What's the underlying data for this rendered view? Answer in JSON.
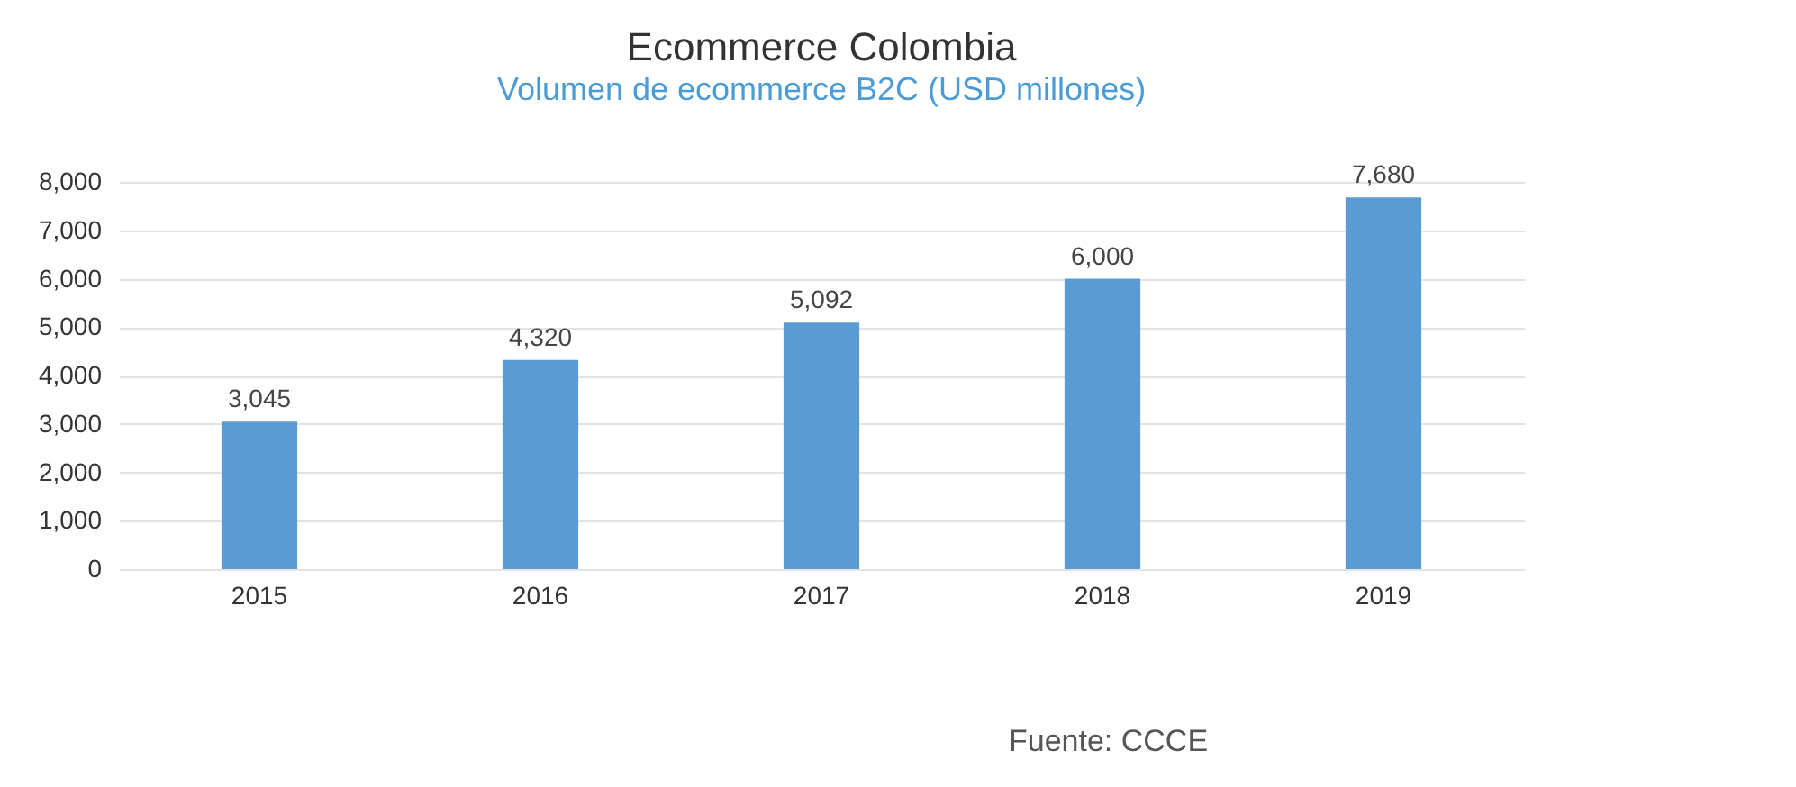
{
  "chart_data": {
    "type": "bar",
    "title": "Ecommerce Colombia",
    "subtitle": "Volumen de ecommerce B2C (USD millones)",
    "categories": [
      "2015",
      "2016",
      "2017",
      "2018",
      "2019"
    ],
    "values": [
      3045,
      4320,
      5092,
      6000,
      7680
    ],
    "value_labels": [
      "3,045",
      "4,320",
      "5,092",
      "6,000",
      "7,680"
    ],
    "color": "#5b9bd5",
    "ylim": [
      0,
      8000
    ],
    "yticks": [
      {
        "value": 0,
        "label": "0"
      },
      {
        "value": 1000,
        "label": "1,000"
      },
      {
        "value": 2000,
        "label": "2,000"
      },
      {
        "value": 3000,
        "label": "3,000"
      },
      {
        "value": 4000,
        "label": "4,000"
      },
      {
        "value": 5000,
        "label": "5,000"
      },
      {
        "value": 6000,
        "label": "6,000"
      },
      {
        "value": 7000,
        "label": "7,000"
      },
      {
        "value": 8000,
        "label": "8,000"
      }
    ],
    "grid": "y",
    "annotations": [
      "Fuente: CCCE"
    ]
  }
}
